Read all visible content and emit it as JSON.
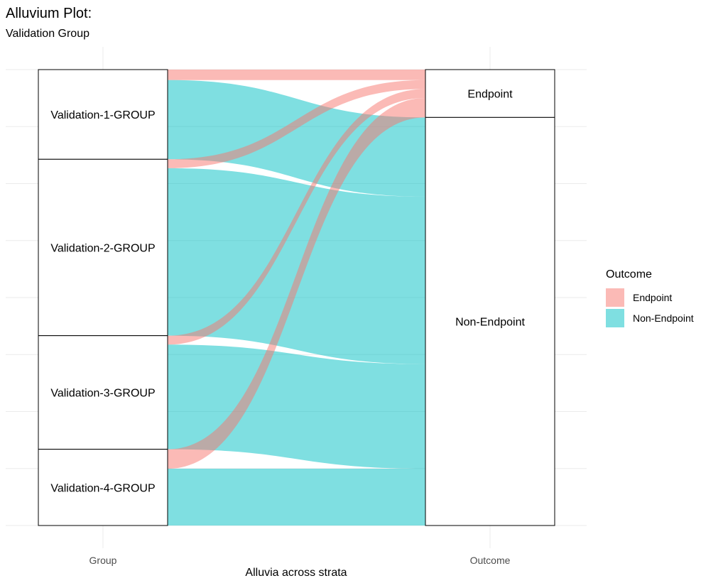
{
  "title": "Alluvium Plot:",
  "subtitle": "Validation Group",
  "chart_data": {
    "type": "alluvial",
    "axes": [
      "Group",
      "Outcome"
    ],
    "xlabel": "Alluvia across strata",
    "ylabel": "",
    "grid": true,
    "legend_position": "right",
    "legend_title": "Outcome",
    "strata": {
      "Group": [
        "Validation-1-GROUP",
        "Validation-2-GROUP",
        "Validation-3-GROUP",
        "Validation-4-GROUP"
      ],
      "Outcome": [
        "Endpoint",
        "Non-Endpoint"
      ]
    },
    "series": [
      {
        "name": "Endpoint",
        "color": "#F8766D",
        "values": [
          7,
          6,
          6,
          13
        ]
      },
      {
        "name": "Non-Endpoint",
        "color": "#00BFC4",
        "values": [
          53,
          112,
          70,
          38
        ]
      }
    ],
    "totals": {
      "Validation-1-GROUP": 60,
      "Validation-2-GROUP": 118,
      "Validation-3-GROUP": 76,
      "Validation-4-GROUP": 51,
      "Endpoint": 32,
      "Non-Endpoint": 273
    }
  }
}
